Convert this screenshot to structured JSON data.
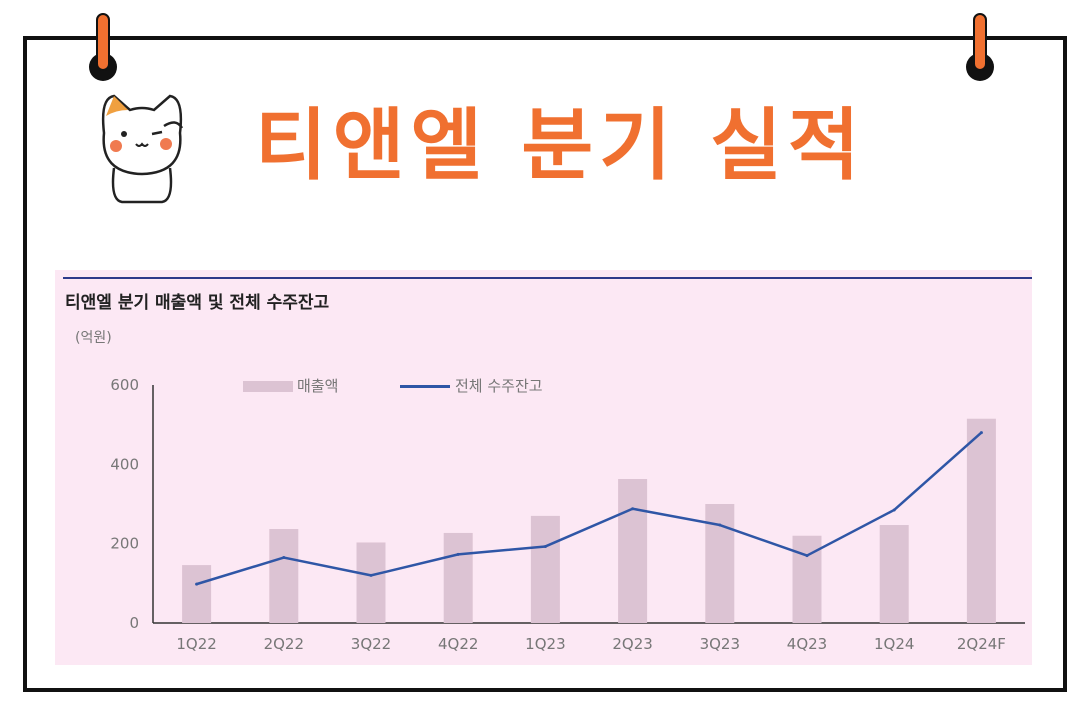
{
  "header": {
    "title": "티앤엘 분기 실적"
  },
  "chart_data": {
    "type": "bar",
    "title": "티앤엘 분기 매출액 및 전체 수주잔고",
    "unit": "(억원)",
    "categories": [
      "1Q22",
      "2Q22",
      "3Q22",
      "4Q22",
      "1Q23",
      "2Q23",
      "3Q23",
      "4Q23",
      "1Q24",
      "2Q24F"
    ],
    "ylim": [
      0,
      600
    ],
    "yticks": [
      "0",
      "200",
      "400",
      "600"
    ],
    "series": [
      {
        "name": "매출액",
        "type": "bar",
        "color": "#dcc3d3",
        "values": [
          146,
          237,
          203,
          227,
          270,
          363,
          300,
          220,
          247,
          515
        ]
      },
      {
        "name": "전체 수주잔고",
        "type": "line",
        "color": "#2f56a6",
        "values": [
          98,
          165,
          120,
          173,
          193,
          288,
          247,
          170,
          285,
          480
        ]
      }
    ],
    "legend": "top-left",
    "grid": false
  },
  "colors": {
    "accent": "#f07030",
    "panel_bg": "#fce8f4",
    "rule": "#2d3a8a"
  },
  "icons": {
    "pin": "pin-icon",
    "mascot": "cat-mascot-icon"
  }
}
